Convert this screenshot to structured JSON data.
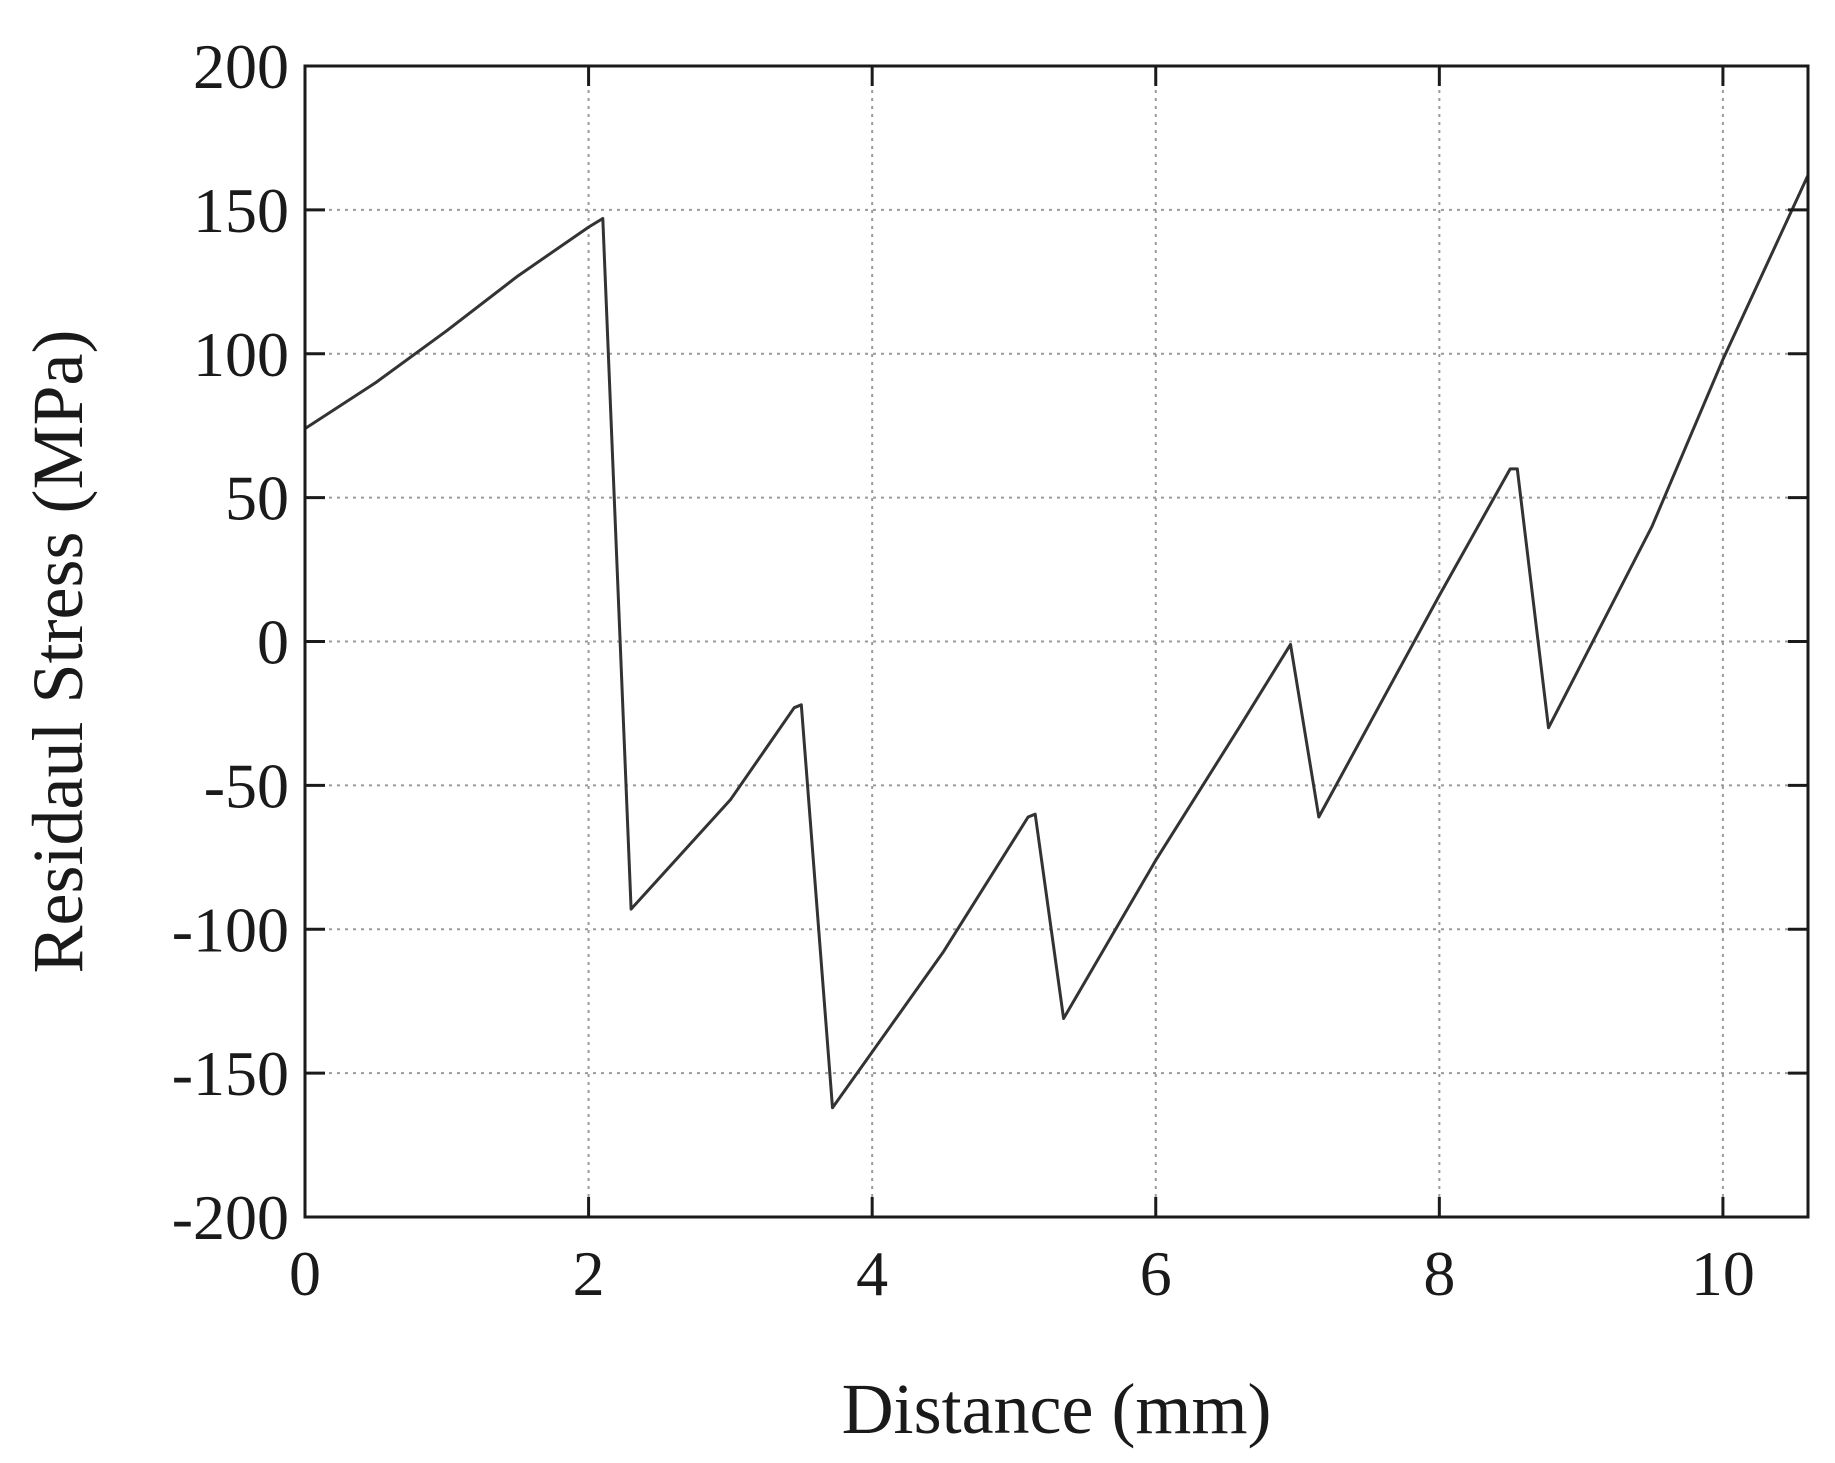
{
  "chart_data": {
    "type": "line",
    "title": "",
    "xlabel": "Distance (mm)",
    "ylabel": "Residaul Stress (MPa)",
    "xlim": [
      0,
      10.6
    ],
    "ylim": [
      -200,
      200
    ],
    "x_ticks": [
      0,
      2,
      4,
      6,
      8,
      10
    ],
    "y_ticks": [
      -200,
      -150,
      -100,
      -50,
      0,
      50,
      100,
      150,
      200
    ],
    "x_tick_labels": [
      "0",
      "2",
      "4",
      "6",
      "8",
      "10"
    ],
    "y_tick_labels": [
      "-200",
      "-150",
      "-100",
      "-50",
      "0",
      "50",
      "100",
      "150",
      "200"
    ],
    "grid": true,
    "line_color": "#333333",
    "series": [
      {
        "x": [
          0,
          0.5,
          1.0,
          1.5,
          2.0,
          2.1,
          2.3,
          3.0,
          3.45,
          3.5,
          3.72,
          4.5,
          5.1,
          5.15,
          5.35,
          6.0,
          6.6,
          6.95,
          7.15,
          8.0,
          8.5,
          8.55,
          8.77,
          9.5,
          10.0,
          10.6
        ],
        "y": [
          74,
          90,
          108,
          127,
          144,
          147,
          -93,
          -55,
          -23,
          -22,
          -162,
          -108,
          -61,
          -60,
          -131,
          -76,
          -29,
          -1,
          -61,
          16,
          60,
          60,
          -30,
          40,
          98,
          162
        ]
      }
    ]
  }
}
